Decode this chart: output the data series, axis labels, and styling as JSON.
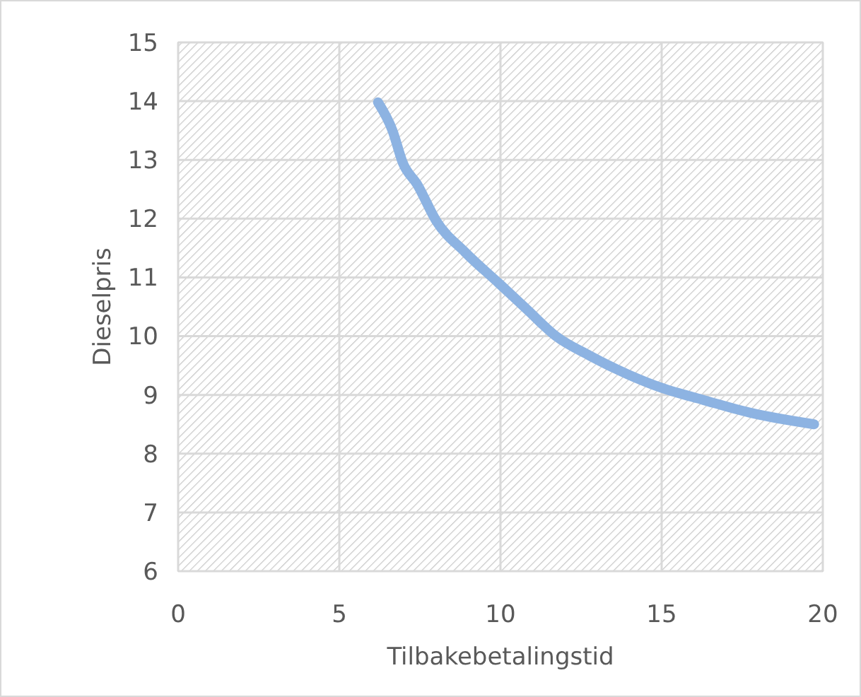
{
  "chart_data": {
    "type": "line",
    "xlabel": "Tilbakebetalingstid",
    "ylabel": "Dieselpris",
    "xlim": [
      0,
      20
    ],
    "xticks": [
      0,
      5,
      10,
      15,
      20
    ],
    "ylim": [
      6,
      15
    ],
    "yticks": [
      6,
      7,
      8,
      9,
      10,
      11,
      12,
      13,
      14,
      15
    ],
    "grid": true,
    "marker": "none",
    "series": [
      {
        "color": "#8db3e2",
        "x": [
          6.2,
          6.65,
          6.97,
          7.42,
          8.01,
          8.9,
          9.95,
          10.83,
          11.72,
          12.76,
          13.95,
          15,
          16.32,
          17.8,
          19.73
        ],
        "values": [
          13.98,
          13.5,
          12.95,
          12.58,
          11.96,
          11.43,
          10.9,
          10.45,
          10.0,
          9.67,
          9.35,
          9.12,
          8.91,
          8.69,
          8.5
        ]
      }
    ]
  }
}
